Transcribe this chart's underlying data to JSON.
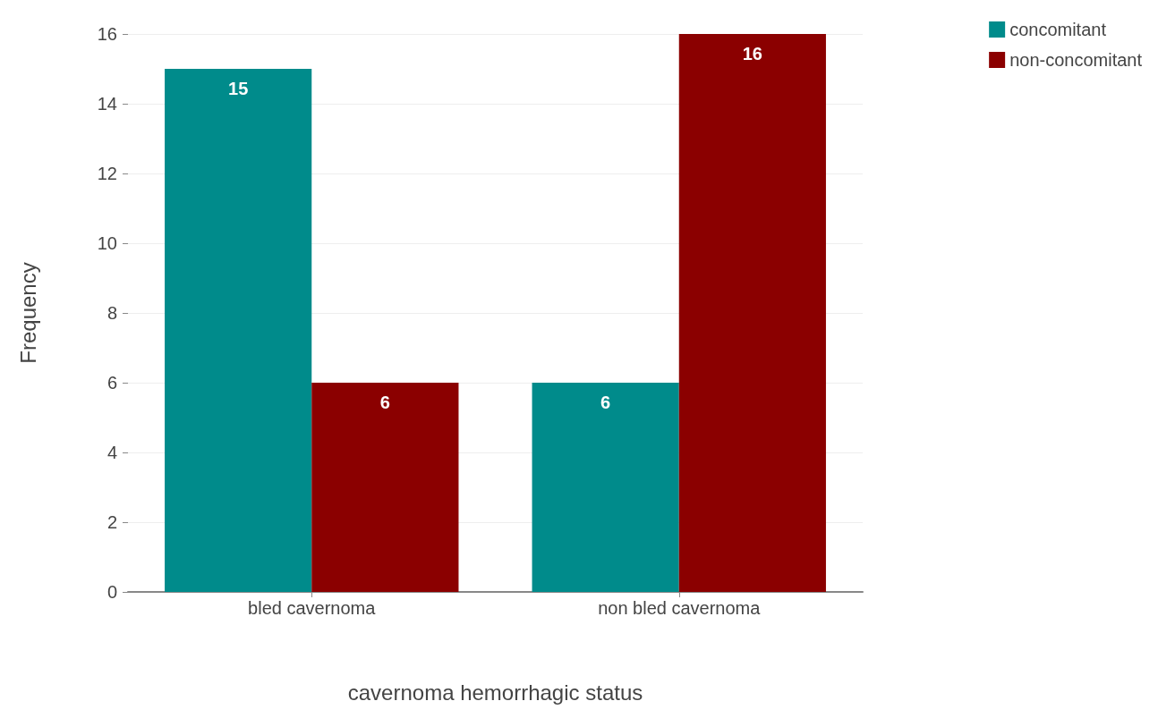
{
  "chart_data": {
    "type": "bar",
    "xlabel": "cavernoma hemorrhagic status",
    "ylabel": "Frequency",
    "categories": [
      "bled cavernoma",
      "non bled cavernoma"
    ],
    "series": [
      {
        "name": "concomitant",
        "color": "#008b8b",
        "values": [
          15,
          6
        ]
      },
      {
        "name": "non-concomitant",
        "color": "#8b0000",
        "values": [
          6,
          16
        ]
      }
    ],
    "ylim": [
      0,
      16
    ],
    "yticks": [
      0,
      2,
      4,
      6,
      8,
      10,
      12,
      14,
      16
    ],
    "grid": "y",
    "legend": "top right",
    "data_labels": true
  }
}
